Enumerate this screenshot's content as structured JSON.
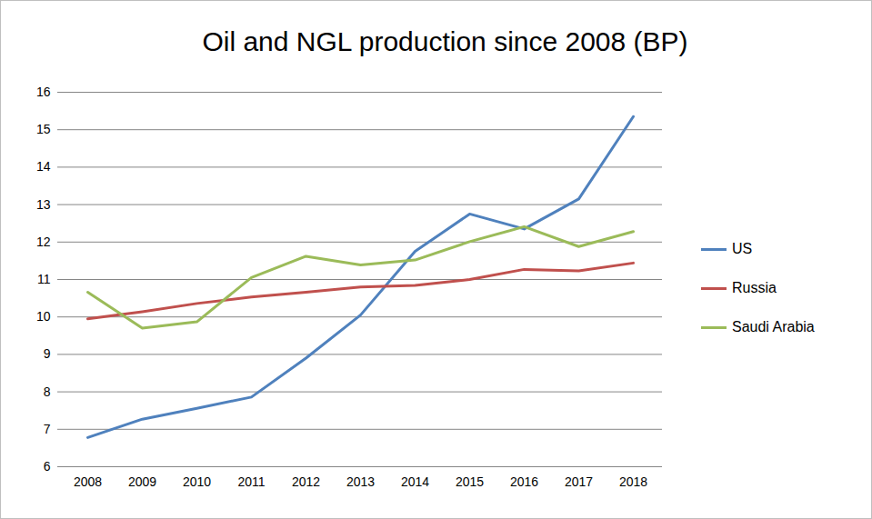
{
  "chart_data": {
    "type": "line",
    "title": "Oil and NGL production since 2008 (BP)",
    "categories": [
      "2008",
      "2009",
      "2010",
      "2011",
      "2012",
      "2013",
      "2014",
      "2015",
      "2016",
      "2017",
      "2018"
    ],
    "series": [
      {
        "name": "US",
        "color": "#4f81bd",
        "values": [
          6.78,
          7.27,
          7.56,
          7.86,
          8.9,
          10.05,
          11.75,
          12.75,
          12.35,
          13.15,
          15.35
        ]
      },
      {
        "name": "Russia",
        "color": "#c0504d",
        "values": [
          9.95,
          10.14,
          10.36,
          10.53,
          10.66,
          10.8,
          10.84,
          11.0,
          11.27,
          11.23,
          11.44
        ]
      },
      {
        "name": "Saudi Arabia",
        "color": "#9bbb59",
        "values": [
          10.66,
          9.7,
          9.87,
          11.05,
          11.62,
          11.39,
          11.52,
          12.01,
          12.41,
          11.88,
          12.28
        ]
      }
    ],
    "ylim": [
      6,
      16
    ],
    "yticks": [
      6,
      7,
      8,
      9,
      10,
      11,
      12,
      13,
      14,
      15,
      16
    ],
    "grid": true,
    "legend": "right"
  }
}
